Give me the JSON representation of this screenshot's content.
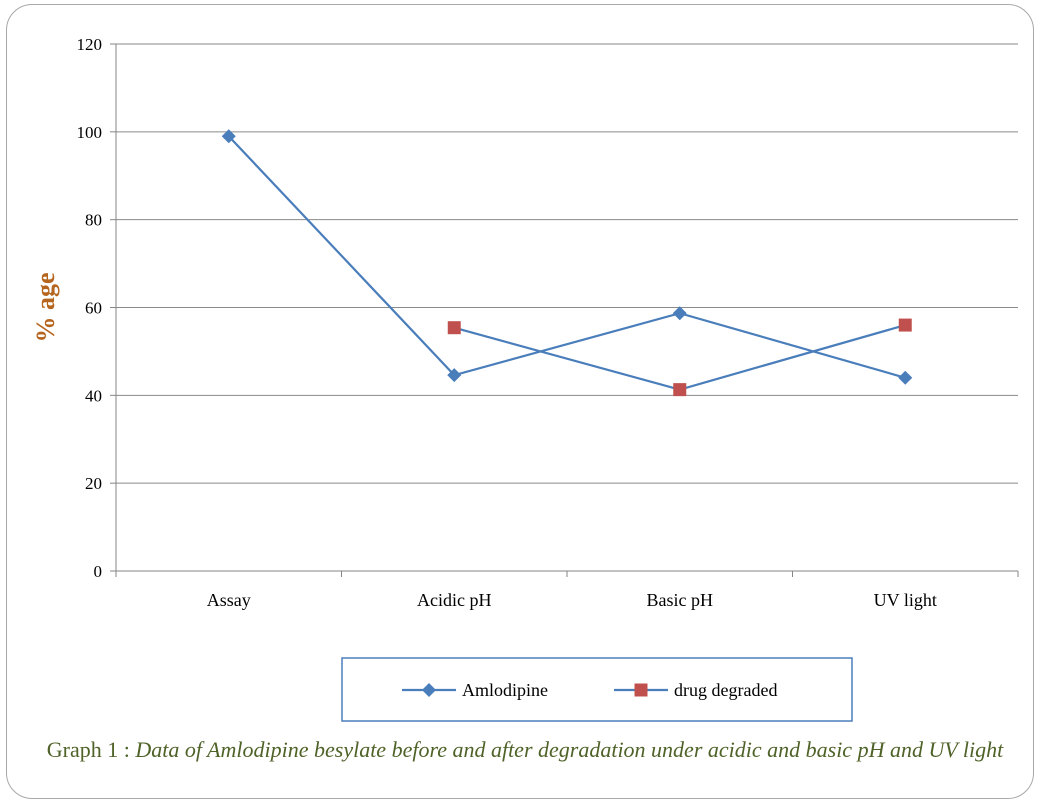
{
  "chart_data": {
    "type": "line",
    "categories": [
      "Assay",
      "Acidic pH",
      "Basic pH",
      "UV light"
    ],
    "series": [
      {
        "name": "Amlodipine",
        "values": [
          99,
          44.6,
          58.7,
          44
        ],
        "color": "#4a7ebb",
        "marker": "diamond"
      },
      {
        "name": "drug degraded",
        "values": [
          null,
          55.4,
          41.3,
          56
        ],
        "color": "#c0504d",
        "line_color": "#4a7ebb",
        "marker": "square"
      }
    ],
    "ylabel": "% age",
    "ylabel_color": "#b5651d",
    "ylim": [
      0,
      120
    ],
    "yticks": [
      0,
      20,
      40,
      60,
      80,
      100,
      120
    ],
    "grid": true,
    "legend_position": "bottom"
  },
  "caption": {
    "label": "Graph  1 :  ",
    "text": "Data of Amlodipine besylate before and after degradation under acidic and basic pH and UV light"
  }
}
